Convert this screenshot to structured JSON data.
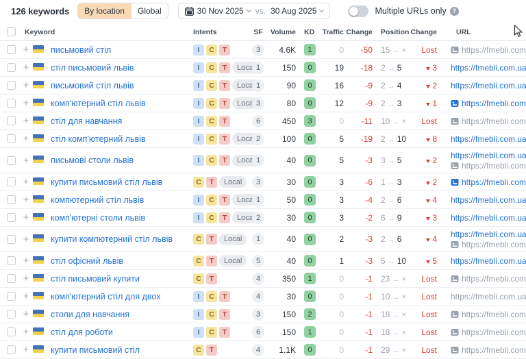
{
  "header": {
    "keywords_count": "126 keywords",
    "location_tabs": [
      {
        "label": "By location",
        "active": true
      },
      {
        "label": "Global",
        "active": false
      }
    ],
    "date_from": "30 Nov 2025",
    "vs_label": "vs.",
    "date_to": "30 Aug 2025",
    "toggle_label": "Multiple URLs only",
    "toggle_state": "off"
  },
  "colors": {
    "accent_blue": "#2472d2",
    "negative_red": "#de3b30",
    "kd_green_bg": "#92d1a1",
    "intent_i_bg": "#cde0f6",
    "intent_c_bg": "#f6e5a1",
    "intent_t_bg": "#f6cac6",
    "local_bg": "#e9ebee",
    "active_filter_bg": "#f8dab4"
  },
  "table": {
    "columns": [
      "Keyword",
      "Intents",
      "SF",
      "Volume",
      "KD",
      "Traffic",
      "Change",
      "Position",
      "Change",
      "URL"
    ],
    "rows": [
      {
        "keyword": "письмовий стіл",
        "intents": [
          "I",
          "C",
          "T"
        ],
        "sf": "3",
        "volume": "4.6K",
        "kd": "1",
        "traffic": "0",
        "traffic_muted": true,
        "change": "-50",
        "pos_from": "15",
        "pos_to": "×",
        "lost": true,
        "pos_change": "Lost",
        "urls": [
          {
            "text": "https://fmebli.com.ua/",
            "icon": true,
            "muted": true
          }
        ]
      },
      {
        "keyword": "стіл письмовий львів",
        "intents": [
          "I",
          "C",
          "T",
          "Local"
        ],
        "sf": "1",
        "volume": "150",
        "kd": "0",
        "traffic": "19",
        "traffic_muted": false,
        "change": "-18",
        "pos_from": "2",
        "pos_to": "5",
        "lost": false,
        "pos_change": "3",
        "urls": [
          {
            "text": "https://fmebli.com.ua/",
            "icon": false,
            "muted": false
          }
        ]
      },
      {
        "keyword": "письмовий стіл львів",
        "intents": [
          "I",
          "C",
          "T",
          "Local"
        ],
        "sf": "1",
        "volume": "90",
        "kd": "0",
        "traffic": "16",
        "traffic_muted": false,
        "change": "-9",
        "pos_from": "2",
        "pos_to": "4",
        "lost": false,
        "pos_change": "2",
        "urls": [
          {
            "text": "https://fmebli.com.ua/",
            "icon": false,
            "muted": false
          }
        ]
      },
      {
        "keyword": "комп'ютерний стіл львів",
        "intents": [
          "I",
          "C",
          "T",
          "Local"
        ],
        "sf": "3",
        "volume": "80",
        "kd": "0",
        "traffic": "12",
        "traffic_muted": false,
        "change": "-9",
        "pos_from": "2",
        "pos_to": "3",
        "lost": false,
        "pos_change": "1",
        "urls": [
          {
            "text": "https://fmebli.com.ua/",
            "icon": true,
            "muted": false
          }
        ]
      },
      {
        "keyword": "стіл для навчання",
        "intents": [
          "I",
          "C",
          "T"
        ],
        "sf": "6",
        "volume": "450",
        "kd": "3",
        "traffic": "0",
        "traffic_muted": true,
        "change": "-11",
        "pos_from": "10",
        "pos_to": "×",
        "lost": true,
        "pos_change": "Lost",
        "urls": [
          {
            "text": "https://fmebli.com.ua/",
            "icon": true,
            "muted": true
          }
        ]
      },
      {
        "keyword": "стіл комп'ютерний львів",
        "intents": [
          "I",
          "C",
          "T",
          "Local"
        ],
        "sf": "2",
        "volume": "100",
        "kd": "0",
        "traffic": "5",
        "traffic_muted": false,
        "change": "-19",
        "pos_from": "2",
        "pos_to": "10",
        "lost": false,
        "pos_change": "8",
        "urls": [
          {
            "text": "https://fmebli.com.ua/",
            "icon": false,
            "muted": false
          }
        ]
      },
      {
        "keyword": "письмові столи львів",
        "intents": [
          "I",
          "C",
          "T",
          "Local"
        ],
        "sf": "1",
        "volume": "40",
        "kd": "0",
        "traffic": "5",
        "traffic_muted": false,
        "change": "-3",
        "pos_from": "3",
        "pos_to": "5",
        "lost": false,
        "pos_change": "2",
        "urls": [
          {
            "text": "https://fmebli.com.ua/",
            "icon": false,
            "muted": false
          },
          {
            "text": "https://fmebli.com.ua/",
            "icon": true,
            "muted": true
          }
        ]
      },
      {
        "keyword": "купити письмовий стіл львів",
        "intents": [
          "C",
          "T",
          "Local"
        ],
        "sf": "3",
        "volume": "30",
        "kd": "0",
        "traffic": "3",
        "traffic_muted": false,
        "change": "-6",
        "pos_from": "1",
        "pos_to": "3",
        "lost": false,
        "pos_change": "2",
        "urls": [
          {
            "text": "https://fmebli.com.ua/",
            "icon": true,
            "muted": false
          }
        ]
      },
      {
        "keyword": "компютерний стіл львів",
        "intents": [
          "I",
          "C",
          "T",
          "Local"
        ],
        "sf": "1",
        "volume": "50",
        "kd": "0",
        "traffic": "3",
        "traffic_muted": false,
        "change": "-4",
        "pos_from": "2",
        "pos_to": "6",
        "lost": false,
        "pos_change": "4",
        "urls": [
          {
            "text": "https://fmebli.com.ua/",
            "icon": false,
            "muted": false
          }
        ]
      },
      {
        "keyword": "комп'ютерні столи львів",
        "intents": [
          "I",
          "C",
          "T",
          "Local"
        ],
        "sf": "2",
        "volume": "30",
        "kd": "0",
        "traffic": "3",
        "traffic_muted": false,
        "change": "-2",
        "pos_from": "6",
        "pos_to": "9",
        "lost": false,
        "pos_change": "3",
        "urls": [
          {
            "text": "https://fmebli.com.ua/",
            "icon": false,
            "muted": false
          }
        ]
      },
      {
        "keyword": "купити компютерний стіл львів",
        "intents": [
          "C",
          "T",
          "Local"
        ],
        "sf": "1",
        "volume": "40",
        "kd": "0",
        "traffic": "2",
        "traffic_muted": false,
        "change": "-3",
        "pos_from": "2",
        "pos_to": "6",
        "lost": false,
        "pos_change": "4",
        "urls": [
          {
            "text": "https://fmebli.com.ua/",
            "icon": false,
            "muted": false
          },
          {
            "text": "https://fmebli.com.ua/",
            "icon": true,
            "muted": true
          }
        ]
      },
      {
        "keyword": "стіл офісний львів",
        "intents": [
          "C",
          "T",
          "Local"
        ],
        "sf": "5",
        "volume": "40",
        "kd": "0",
        "traffic": "1",
        "traffic_muted": false,
        "change": "-3",
        "pos_from": "5",
        "pos_to": "10",
        "lost": false,
        "pos_change": "5",
        "urls": [
          {
            "text": "https://fmebli.com.ua/",
            "icon": false,
            "muted": false
          }
        ]
      },
      {
        "keyword": "стіл письмовий купити",
        "intents": [
          "C",
          "T"
        ],
        "sf": "4",
        "volume": "350",
        "kd": "1",
        "traffic": "0",
        "traffic_muted": true,
        "change": "-1",
        "pos_from": "23",
        "pos_to": "×",
        "lost": true,
        "pos_change": "Lost",
        "urls": [
          {
            "text": "https://fmebli.com.ua/",
            "icon": true,
            "muted": true
          }
        ]
      },
      {
        "keyword": "комп'ютерний стіл для двох",
        "intents": [
          "I",
          "C",
          "T"
        ],
        "sf": "4",
        "volume": "30",
        "kd": "0",
        "traffic": "0",
        "traffic_muted": true,
        "change": "-1",
        "pos_from": "10",
        "pos_to": "×",
        "lost": true,
        "pos_change": "Lost",
        "urls": [
          {
            "text": "https://fmebli.com.ua/",
            "icon": false,
            "muted": true
          }
        ]
      },
      {
        "keyword": "столи для навчання",
        "intents": [
          "I",
          "C",
          "T"
        ],
        "sf": "3",
        "volume": "150",
        "kd": "2",
        "traffic": "0",
        "traffic_muted": true,
        "change": "-1",
        "pos_from": "18",
        "pos_to": "×",
        "lost": true,
        "pos_change": "Lost",
        "urls": [
          {
            "text": "https://fmebli.com.ua/",
            "icon": true,
            "muted": true
          }
        ]
      },
      {
        "keyword": "стіл для роботи",
        "intents": [
          "I",
          "C",
          "T"
        ],
        "sf": "6",
        "volume": "150",
        "kd": "1",
        "traffic": "0",
        "traffic_muted": true,
        "change": "-1",
        "pos_from": "18",
        "pos_to": "×",
        "lost": true,
        "pos_change": "Lost",
        "urls": [
          {
            "text": "https://fmebli.com.ua/",
            "icon": true,
            "muted": true
          }
        ]
      },
      {
        "keyword": "купити письмовий стіл",
        "intents": [
          "C",
          "T"
        ],
        "sf": "4",
        "volume": "1.1K",
        "kd": "0",
        "traffic": "0",
        "traffic_muted": true,
        "change": "-1",
        "pos_from": "29",
        "pos_to": "×",
        "lost": true,
        "pos_change": "Lost",
        "urls": [
          {
            "text": "https://fmebli.com.ua/",
            "icon": true,
            "muted": true
          }
        ]
      }
    ]
  }
}
